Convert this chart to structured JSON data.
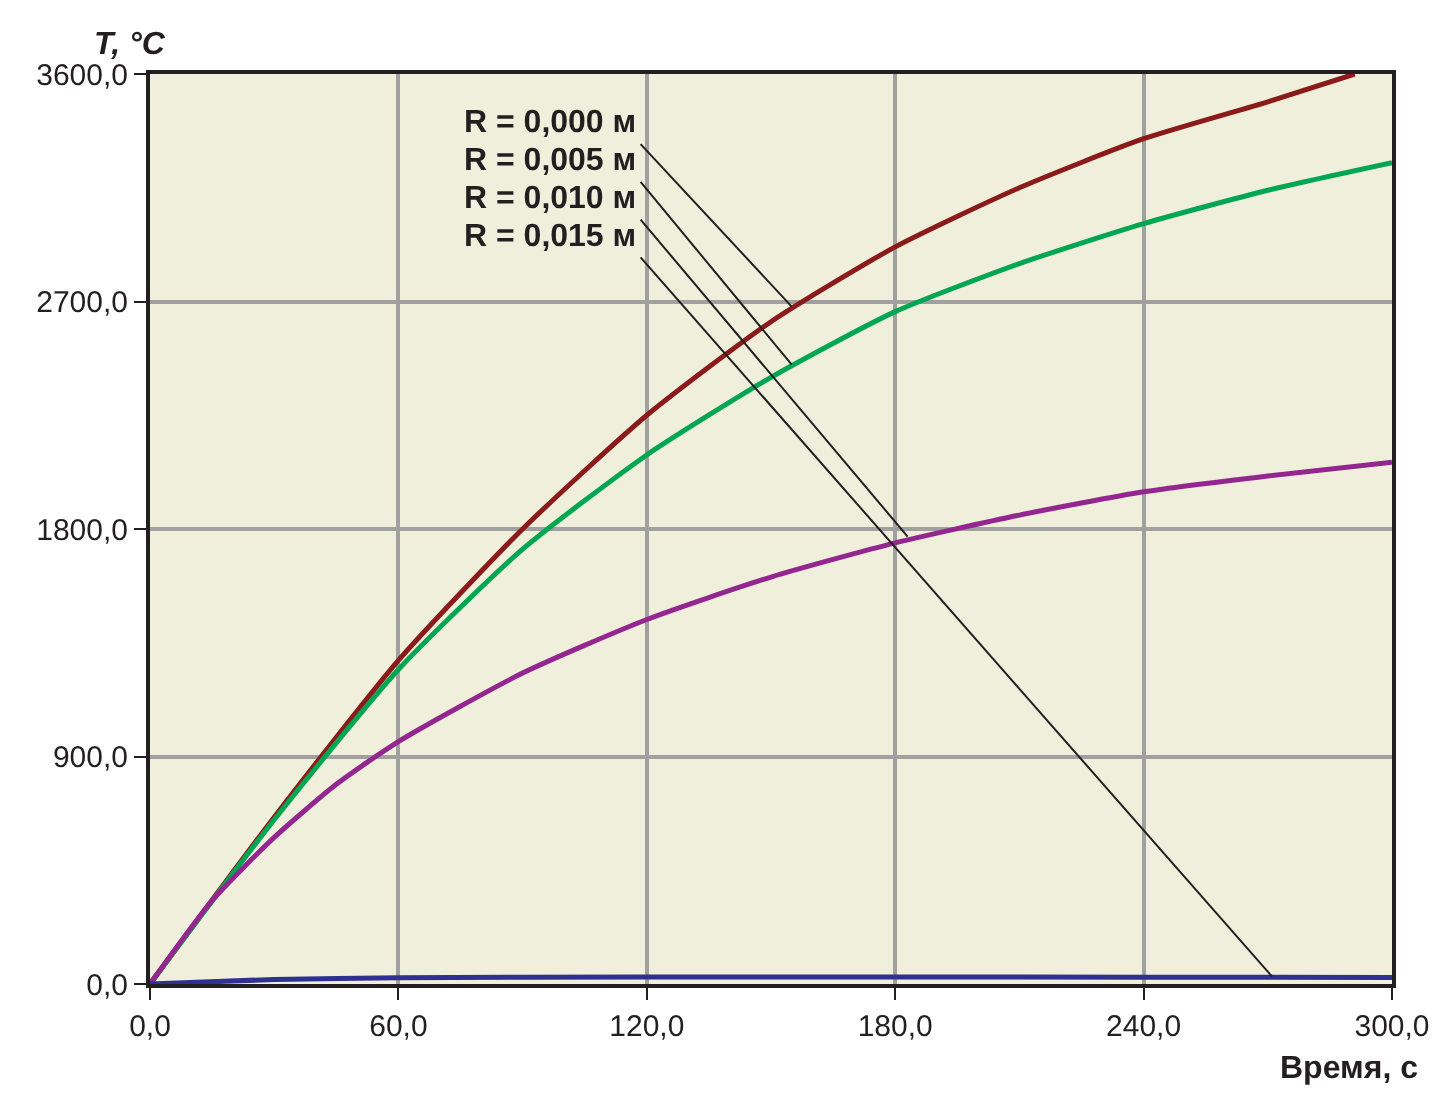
{
  "chart_data": {
    "type": "line",
    "xlabel": "Время, с",
    "ylabel": "T, °C",
    "xlim": [
      0,
      300
    ],
    "ylim": [
      0,
      3600
    ],
    "xticks": [
      {
        "value": 0,
        "label": "0,0"
      },
      {
        "value": 60,
        "label": "60,0"
      },
      {
        "value": 120,
        "label": "120,0"
      },
      {
        "value": 180,
        "label": "180,0"
      },
      {
        "value": 240,
        "label": "240,0"
      },
      {
        "value": 300,
        "label": "300,0"
      }
    ],
    "yticks": [
      {
        "value": 0,
        "label": "0,0"
      },
      {
        "value": 900,
        "label": "900,0"
      },
      {
        "value": 1800,
        "label": "1800,0"
      },
      {
        "value": 2700,
        "label": "2700,0"
      },
      {
        "value": 3600,
        "label": "3600,0"
      }
    ],
    "grid": true,
    "marker": "none",
    "line_style": "solid",
    "series": [
      {
        "color": "#8b1a1a",
        "x": [
          0,
          30,
          60,
          90,
          120,
          150,
          180,
          210,
          240,
          270,
          291
        ],
        "values": [
          0,
          660,
          1280,
          1800,
          2250,
          2620,
          2916,
          3150,
          3344,
          3490,
          3600
        ]
      },
      {
        "color": "#00a651",
        "x": [
          0,
          30,
          60,
          90,
          120,
          150,
          180,
          210,
          240,
          270,
          300
        ],
        "values": [
          0,
          650,
          1244,
          1720,
          2093,
          2400,
          2660,
          2850,
          3008,
          3140,
          3249
        ]
      },
      {
        "color": "#93278f",
        "x": [
          0,
          15,
          30,
          45,
          60,
          90,
          120,
          150,
          180,
          210,
          240,
          270,
          300
        ],
        "values": [
          0,
          330,
          580,
          790,
          959,
          1230,
          1442,
          1610,
          1745,
          1855,
          1947,
          2010,
          2064
        ]
      },
      {
        "color": "#2e3192",
        "x": [
          0,
          30,
          60,
          120,
          180,
          240,
          300
        ],
        "values": [
          0,
          18,
          25,
          28,
          28,
          27,
          26
        ]
      }
    ],
    "annotations": [
      {
        "text": "R = 0,000 м",
        "x": 155,
        "y": 2680
      },
      {
        "text": "R = 0,005 м",
        "x": 155,
        "y": 2450
      },
      {
        "text": "R = 0,010 м",
        "x": 183,
        "y": 1770
      },
      {
        "text": "R = 0,015 м",
        "x": 271,
        "y": 30
      }
    ]
  }
}
